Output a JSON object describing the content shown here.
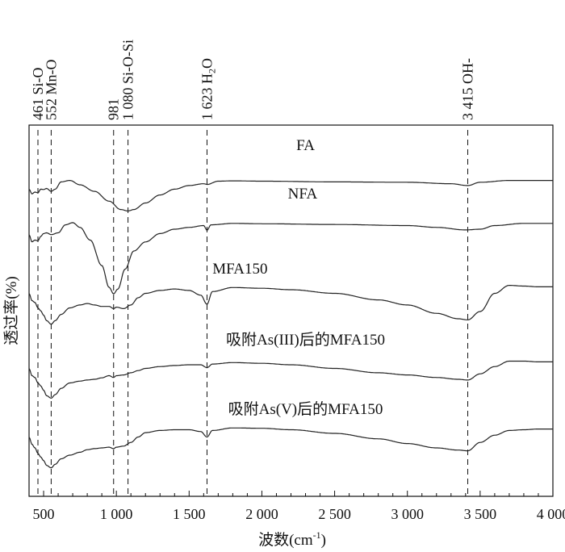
{
  "chart_data": {
    "type": "line",
    "title": "",
    "xlabel": "波数(cm",
    "xlabel_sup": "-1",
    "xlabel_tail": ")",
    "ylabel": "透过率(%)",
    "xlim": [
      400,
      4000
    ],
    "x_ticks": [
      {
        "value": 500,
        "label": "500"
      },
      {
        "value": 1000,
        "label": "1 000"
      },
      {
        "value": 1500,
        "label": "1 500"
      },
      {
        "value": 2000,
        "label": "2 000"
      },
      {
        "value": 2500,
        "label": "2 500"
      },
      {
        "value": 3000,
        "label": "3 000"
      },
      {
        "value": 3500,
        "label": "3 500"
      },
      {
        "value": 4000,
        "label": "4 000"
      }
    ],
    "annotations": [
      {
        "wavenumber": 461,
        "label": "461 Si-O"
      },
      {
        "wavenumber": 552,
        "label": "552 Mn-O"
      },
      {
        "wavenumber": 981,
        "label": "981"
      },
      {
        "wavenumber": 1080,
        "label": "1 080 Si-O-Si"
      },
      {
        "wavenumber": 1623,
        "label_main": "1 623 H",
        "label_sub": "2",
        "label_tail": "O"
      },
      {
        "wavenumber": 3415,
        "label": "3 415 OH-"
      }
    ],
    "series": [
      {
        "name": "FA",
        "label_at": 2300,
        "points": [
          [
            400,
            0.72
          ],
          [
            420,
            0.85
          ],
          [
            440,
            0.8
          ],
          [
            461,
            0.82
          ],
          [
            480,
            0.72
          ],
          [
            500,
            0.73
          ],
          [
            520,
            0.7
          ],
          [
            552,
            0.78
          ],
          [
            580,
            0.72
          ],
          [
            620,
            0.52
          ],
          [
            680,
            0.48
          ],
          [
            750,
            0.6
          ],
          [
            850,
            0.78
          ],
          [
            950,
            1.05
          ],
          [
            1030,
            1.28
          ],
          [
            1080,
            1.32
          ],
          [
            1120,
            1.28
          ],
          [
            1200,
            1.1
          ],
          [
            1300,
            0.88
          ],
          [
            1400,
            0.72
          ],
          [
            1500,
            0.62
          ],
          [
            1600,
            0.57
          ],
          [
            1623,
            0.59
          ],
          [
            1700,
            0.5
          ],
          [
            1800,
            0.49
          ],
          [
            2000,
            0.5
          ],
          [
            2500,
            0.52
          ],
          [
            3000,
            0.53
          ],
          [
            3300,
            0.57
          ],
          [
            3415,
            0.62
          ],
          [
            3500,
            0.53
          ],
          [
            3700,
            0.48
          ],
          [
            4000,
            0.48
          ]
        ]
      },
      {
        "name": "NFA",
        "label_at": 2280,
        "points": [
          [
            400,
            0.75
          ],
          [
            420,
            0.95
          ],
          [
            440,
            0.9
          ],
          [
            461,
            0.92
          ],
          [
            480,
            0.8
          ],
          [
            500,
            0.72
          ],
          [
            520,
            0.7
          ],
          [
            552,
            0.75
          ],
          [
            600,
            0.7
          ],
          [
            650,
            0.48
          ],
          [
            700,
            0.42
          ],
          [
            750,
            0.55
          ],
          [
            820,
            0.9
          ],
          [
            900,
            1.6
          ],
          [
            950,
            2.2
          ],
          [
            981,
            2.38
          ],
          [
            1010,
            2.25
          ],
          [
            1060,
            1.7
          ],
          [
            1120,
            1.2
          ],
          [
            1200,
            0.95
          ],
          [
            1300,
            0.72
          ],
          [
            1400,
            0.6
          ],
          [
            1500,
            0.55
          ],
          [
            1600,
            0.5
          ],
          [
            1623,
            0.63
          ],
          [
            1650,
            0.48
          ],
          [
            1800,
            0.44
          ],
          [
            2000,
            0.45
          ],
          [
            2500,
            0.47
          ],
          [
            3000,
            0.5
          ],
          [
            3200,
            0.55
          ],
          [
            3400,
            0.62
          ],
          [
            3500,
            0.6
          ],
          [
            3600,
            0.5
          ],
          [
            3800,
            0.44
          ],
          [
            4000,
            0.44
          ]
        ]
      },
      {
        "name": "MFA150",
        "label_at": 1850,
        "points": [
          [
            400,
            0.3
          ],
          [
            420,
            0.5
          ],
          [
            440,
            0.55
          ],
          [
            461,
            0.7
          ],
          [
            480,
            0.78
          ],
          [
            500,
            0.9
          ],
          [
            520,
            1.05
          ],
          [
            552,
            1.15
          ],
          [
            580,
            1.05
          ],
          [
            620,
            0.88
          ],
          [
            680,
            0.7
          ],
          [
            750,
            0.62
          ],
          [
            800,
            0.58
          ],
          [
            850,
            0.62
          ],
          [
            900,
            0.66
          ],
          [
            950,
            0.66
          ],
          [
            981,
            0.72
          ],
          [
            1000,
            0.68
          ],
          [
            1050,
            0.72
          ],
          [
            1100,
            0.62
          ],
          [
            1150,
            0.42
          ],
          [
            1200,
            0.3
          ],
          [
            1300,
            0.22
          ],
          [
            1400,
            0.18
          ],
          [
            1500,
            0.22
          ],
          [
            1580,
            0.35
          ],
          [
            1623,
            0.6
          ],
          [
            1660,
            0.25
          ],
          [
            1800,
            0.14
          ],
          [
            2000,
            0.16
          ],
          [
            2200,
            0.2
          ],
          [
            2500,
            0.3
          ],
          [
            2800,
            0.48
          ],
          [
            3000,
            0.62
          ],
          [
            3200,
            0.85
          ],
          [
            3350,
            1.0
          ],
          [
            3415,
            1.03
          ],
          [
            3500,
            0.8
          ],
          [
            3600,
            0.3
          ],
          [
            3700,
            0.08
          ],
          [
            3800,
            0.1
          ],
          [
            3900,
            0.12
          ],
          [
            4000,
            0.12
          ]
        ]
      },
      {
        "name": "吸附As(III)后的MFA150",
        "label_at": 2300,
        "points": [
          [
            400,
            0.3
          ],
          [
            420,
            0.5
          ],
          [
            440,
            0.55
          ],
          [
            461,
            0.7
          ],
          [
            480,
            0.78
          ],
          [
            500,
            0.9
          ],
          [
            520,
            1.05
          ],
          [
            552,
            1.12
          ],
          [
            580,
            1.02
          ],
          [
            620,
            0.85
          ],
          [
            680,
            0.7
          ],
          [
            750,
            0.65
          ],
          [
            800,
            0.62
          ],
          [
            850,
            0.6
          ],
          [
            900,
            0.56
          ],
          [
            950,
            0.5
          ],
          [
            981,
            0.55
          ],
          [
            1000,
            0.5
          ],
          [
            1050,
            0.48
          ],
          [
            1100,
            0.42
          ],
          [
            1150,
            0.36
          ],
          [
            1200,
            0.3
          ],
          [
            1300,
            0.25
          ],
          [
            1400,
            0.22
          ],
          [
            1500,
            0.2
          ],
          [
            1580,
            0.2
          ],
          [
            1623,
            0.28
          ],
          [
            1660,
            0.18
          ],
          [
            1800,
            0.14
          ],
          [
            2000,
            0.16
          ],
          [
            2200,
            0.2
          ],
          [
            2500,
            0.3
          ],
          [
            2800,
            0.42
          ],
          [
            3000,
            0.48
          ],
          [
            3200,
            0.55
          ],
          [
            3350,
            0.6
          ],
          [
            3415,
            0.62
          ],
          [
            3500,
            0.45
          ],
          [
            3600,
            0.25
          ],
          [
            3700,
            0.1
          ],
          [
            3800,
            0.1
          ],
          [
            3900,
            0.12
          ],
          [
            4000,
            0.12
          ]
        ]
      },
      {
        "name": "吸附As(V)后的MFA150",
        "label_at": 2300,
        "points": [
          [
            400,
            0.3
          ],
          [
            420,
            0.5
          ],
          [
            440,
            0.6
          ],
          [
            461,
            0.75
          ],
          [
            480,
            0.85
          ],
          [
            500,
            0.95
          ],
          [
            520,
            1.08
          ],
          [
            552,
            1.15
          ],
          [
            580,
            1.05
          ],
          [
            620,
            0.9
          ],
          [
            680,
            0.8
          ],
          [
            750,
            0.72
          ],
          [
            800,
            0.65
          ],
          [
            850,
            0.62
          ],
          [
            900,
            0.6
          ],
          [
            950,
            0.58
          ],
          [
            981,
            0.62
          ],
          [
            1000,
            0.58
          ],
          [
            1050,
            0.55
          ],
          [
            1100,
            0.45
          ],
          [
            1150,
            0.3
          ],
          [
            1200,
            0.18
          ],
          [
            1300,
            0.12
          ],
          [
            1400,
            0.1
          ],
          [
            1500,
            0.1
          ],
          [
            1580,
            0.15
          ],
          [
            1623,
            0.3
          ],
          [
            1660,
            0.12
          ],
          [
            1800,
            0.05
          ],
          [
            2000,
            0.06
          ],
          [
            2200,
            0.1
          ],
          [
            2500,
            0.2
          ],
          [
            2800,
            0.35
          ],
          [
            3000,
            0.48
          ],
          [
            3200,
            0.6
          ],
          [
            3350,
            0.66
          ],
          [
            3415,
            0.68
          ],
          [
            3500,
            0.45
          ],
          [
            3600,
            0.25
          ],
          [
            3700,
            0.12
          ],
          [
            3800,
            0.1
          ],
          [
            3900,
            0.08
          ],
          [
            4000,
            0.08
          ]
        ]
      }
    ]
  }
}
